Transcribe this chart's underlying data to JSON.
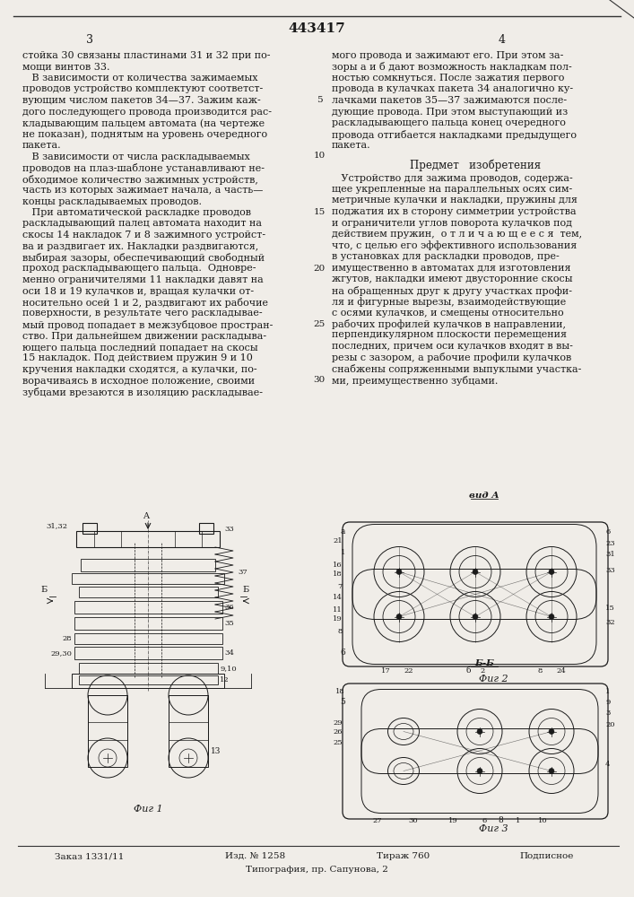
{
  "patent_number": "443417",
  "page_left": "3",
  "page_right": "4",
  "background_color": "#f0ede8",
  "text_color": "#1a1a1a",
  "border_color": "#333333",
  "col1_lines": [
    "стойка 30 связаны пластинами 31 и 32 при по-",
    "мощи винтов 33.",
    "   В зависимости от количества зажимаемых",
    "проводов устройство комплектуют соответст-",
    "вующим числом пакетов 34—37. Зажим каж-",
    "дого последующего провода производится рас-",
    "кладывающим пальцем автомата (на чертеже",
    "не показан), поднятым на уровень очередного",
    "пакета.",
    "   В зависимости от числа раскладываемых",
    "проводов на плаз-шаблоне устанавливают не-",
    "обходимое количество зажимных устройств,",
    "часть из которых зажимает начала, а часть—",
    "концы раскладываемых проводов.",
    "   При автоматической раскладке проводов",
    "раскладывающий палец автомата находит на",
    "скосы 14 накладок 7 и 8 зажимного устройст-",
    "ва и раздвигает их. Накладки раздвигаются,",
    "выбирая зазоры, обеспечивающий свободный",
    "проход раскладывающего пальца.  Одновре-",
    "менно ограничителями 11 накладки давят на",
    "оси 18 и 19 кулачков и, вращая кулачки от-",
    "носительно осей 1 и 2, раздвигают их рабочие",
    "поверхности, в результате чего раскладывае-",
    "мый провод попадает в межзубцовое простран-",
    "ство. При дальнейшем движении раскладыва-",
    "ющего пальца последний попадает на скосы",
    "15 накладок. Под действием пружин 9 и 10",
    "кручения накладки сходятся, а кулачки, по-",
    "ворачиваясь в исходное положение, своими",
    "зубцами врезаются в изоляцию раскладывае-"
  ],
  "col2_lines": [
    "мого провода и зажимают его. При этом за-",
    "зоры а и б дают возможность накладкам пол-",
    "ностью сомкнуться. После зажатия первого",
    "провода в кулачках пакета 34 аналогично ку-",
    "лачками пакетов 35—37 зажимаются после-",
    "дующие провода. При этом выступающий из",
    "раскладывающего пальца конец очередного",
    "провода отгибается накладками предыдущего",
    "пакета."
  ],
  "subject_title": "Предмет   изобретения",
  "subject_lines": [
    "   Устройство для зажима проводов, содержа-",
    "щее укрепленные на параллельных осях сим-",
    "метричные кулачки и накладки, пружины для",
    "поджатия их в сторону симметрии устройства",
    "и ограничители углов поворота кулачков под",
    "действием пружин,  о т л и ч а ю щ е е с я  тем,",
    "что, с целью его эффективного использования",
    "в установках для раскладки проводов, пре-",
    "имущественно в автоматах для изготовления",
    "жгутов, накладки имеют двусторонние скосы",
    "на обращенных друг к другу участках профи-",
    "ля и фигурные вырезы, взаимодействующие",
    "с осями кулачков, и смещены относительно",
    "рабочих профилей кулачков в направлении,",
    "перпендикулярном плоскости перемещения",
    "последних, причем оси кулачков входят в вы-",
    "резы с зазором, а рабочие профили кулачков",
    "снабжены сопряженными выпуклыми участка-",
    "ми, преимущественно зубцами."
  ],
  "line_numbers": [
    5,
    10,
    15,
    20,
    25,
    30
  ],
  "line_number_rows": [
    4,
    9,
    14,
    19,
    24,
    29
  ],
  "footer_order": "Заказ 1331/11",
  "footer_izd": "Изд. № 1258",
  "footer_tirazh": "Тираж 760",
  "footer_podpisnoe": "Подписное",
  "footer_typography": "Типография, пр. Сапунова, 2"
}
